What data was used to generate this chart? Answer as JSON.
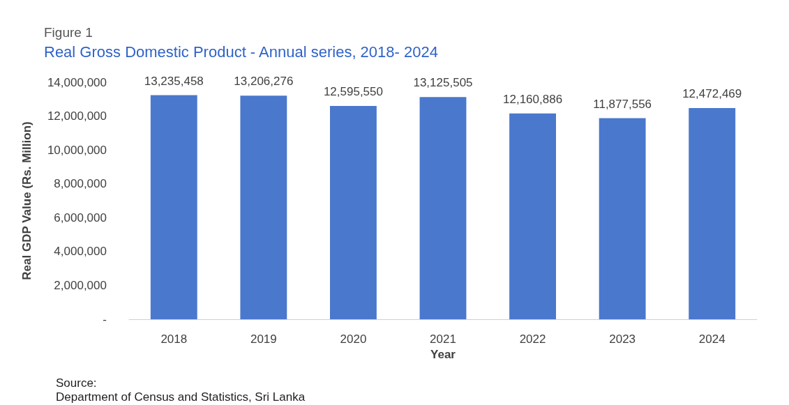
{
  "chart_data": {
    "type": "bar",
    "title": "Figure 1",
    "subtitle": "Real Gross Domestic Product - Annual series, 2018- 2024",
    "xlabel": "Year",
    "ylabel": "Real GDP Value (Rs. Million)",
    "categories": [
      "2018",
      "2019",
      "2020",
      "2021",
      "2022",
      "2023",
      "2024"
    ],
    "values": [
      13235458,
      13206276,
      12595550,
      13125505,
      12160886,
      11877556,
      12472469
    ],
    "value_labels": [
      "13,235,458",
      "13,206,276",
      "12,595,550",
      "13,125,505",
      "12,160,886",
      "11,877,556",
      "12,472,469"
    ],
    "color": "#4a78cc",
    "ylim": [
      0,
      14000000
    ],
    "yticks": [
      {
        "value": 0,
        "label": "-"
      },
      {
        "value": 2000000,
        "label": "2,000,000"
      },
      {
        "value": 4000000,
        "label": "4,000,000"
      },
      {
        "value": 6000000,
        "label": "6,000,000"
      },
      {
        "value": 8000000,
        "label": "8,000,000"
      },
      {
        "value": 10000000,
        "label": "10,000,000"
      },
      {
        "value": 12000000,
        "label": "12,000,000"
      },
      {
        "value": 14000000,
        "label": "14,000,000"
      }
    ],
    "grid": false,
    "annotations": [
      "Source:",
      "Department of Census and Statistics, Sri Lanka"
    ]
  }
}
